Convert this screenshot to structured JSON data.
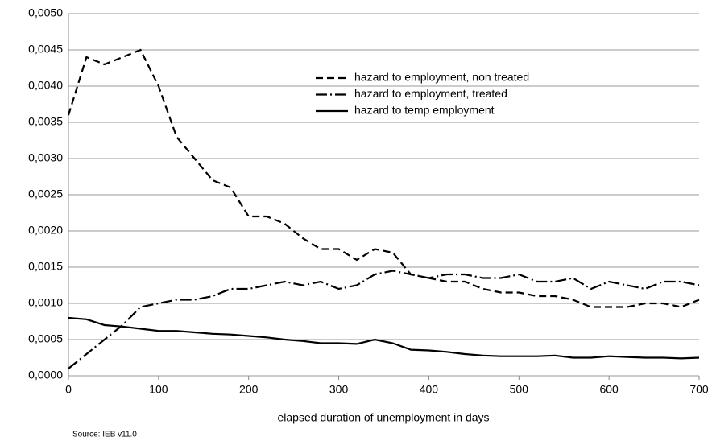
{
  "chart_data": {
    "type": "line",
    "x_label": "elapsed duration of unemployment in days",
    "source": "Source: IEB v11.0",
    "x": [
      0,
      20,
      40,
      60,
      80,
      100,
      120,
      140,
      160,
      180,
      200,
      220,
      240,
      260,
      280,
      300,
      320,
      340,
      360,
      380,
      400,
      420,
      440,
      460,
      480,
      500,
      520,
      540,
      560,
      580,
      600,
      620,
      640,
      660,
      680,
      700
    ],
    "series": [
      {
        "name": "hazard to employment, non treated",
        "color": "#000000",
        "line_style": "dashed",
        "values": [
          0.0036,
          0.0044,
          0.0043,
          0.0044,
          0.0045,
          0.004,
          0.0033,
          0.003,
          0.0027,
          0.0026,
          0.0022,
          0.0022,
          0.0021,
          0.0019,
          0.00175,
          0.00175,
          0.0016,
          0.00175,
          0.0017,
          0.0014,
          0.00135,
          0.0013,
          0.0013,
          0.0012,
          0.00115,
          0.00115,
          0.0011,
          0.0011,
          0.00105,
          0.00095,
          0.00095,
          0.00095,
          0.001,
          0.001,
          0.00095,
          0.00105
        ]
      },
      {
        "name": "hazard to employment, treated",
        "color": "#000000",
        "line_style": "dashdot",
        "values": [
          0.0001,
          0.0003,
          0.0005,
          0.0007,
          0.00095,
          0.001,
          0.00105,
          0.00105,
          0.0011,
          0.0012,
          0.0012,
          0.00125,
          0.0013,
          0.00125,
          0.0013,
          0.0012,
          0.00125,
          0.0014,
          0.00145,
          0.0014,
          0.00135,
          0.0014,
          0.0014,
          0.00135,
          0.00135,
          0.0014,
          0.0013,
          0.0013,
          0.00135,
          0.0012,
          0.0013,
          0.00125,
          0.0012,
          0.0013,
          0.0013,
          0.00125
        ]
      },
      {
        "name": "hazard to temp employment",
        "color": "#000000",
        "line_style": "solid",
        "values": [
          0.0008,
          0.00078,
          0.0007,
          0.00068,
          0.00065,
          0.00062,
          0.00062,
          0.0006,
          0.00058,
          0.00057,
          0.00055,
          0.00053,
          0.0005,
          0.00048,
          0.00045,
          0.00045,
          0.00044,
          0.0005,
          0.00045,
          0.00036,
          0.00035,
          0.00033,
          0.0003,
          0.00028,
          0.00027,
          0.00027,
          0.00027,
          0.00028,
          0.00025,
          0.00025,
          0.00027,
          0.00026,
          0.00025,
          0.00025,
          0.00024,
          0.00025
        ]
      }
    ],
    "xlim": [
      0,
      700
    ],
    "xticks": [
      0,
      100,
      200,
      300,
      400,
      500,
      600,
      700
    ],
    "ylim": [
      0,
      0.005
    ],
    "yticks": [
      {
        "value": 0,
        "label": "0,0000"
      },
      {
        "value": 0.0005,
        "label": "0,0005"
      },
      {
        "value": 0.001,
        "label": "0,0010"
      },
      {
        "value": 0.0015,
        "label": "0,0015"
      },
      {
        "value": 0.002,
        "label": "0,0020"
      },
      {
        "value": 0.0025,
        "label": "0,0025"
      },
      {
        "value": 0.003,
        "label": "0,0030"
      },
      {
        "value": 0.0035,
        "label": "0,0035"
      },
      {
        "value": 0.004,
        "label": "0,0040"
      },
      {
        "value": 0.0045,
        "label": "0,0045"
      },
      {
        "value": 0.005,
        "label": "0,0050"
      }
    ],
    "grid": true
  }
}
